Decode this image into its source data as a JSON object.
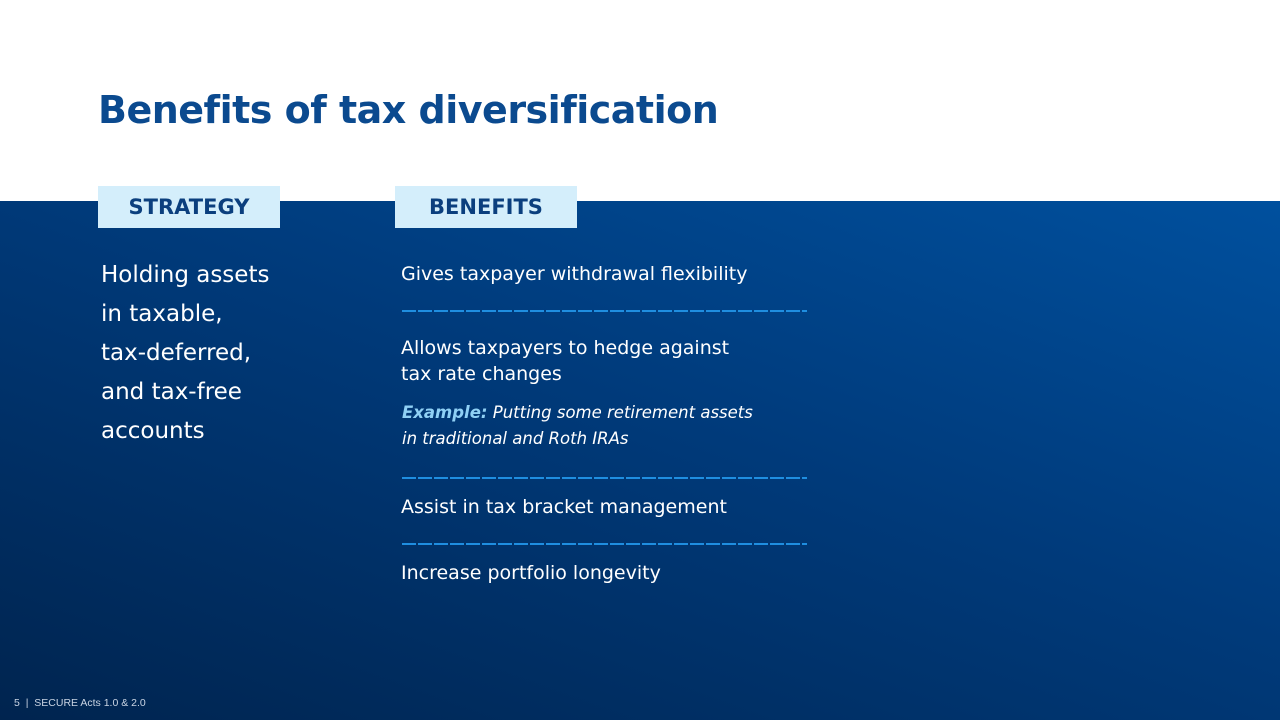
{
  "title": "Benefits of tax diversification",
  "strategy": {
    "header": "STRATEGY",
    "lines": [
      "Holding assets",
      "in taxable,",
      "tax-deferred,",
      "and tax-free",
      "accounts"
    ]
  },
  "benefits": {
    "header": "BENEFITS",
    "items": [
      {
        "lines": [
          "Gives taxpayer withdrawal flexibility"
        ]
      },
      {
        "lines": [
          "Allows taxpayers to hedge against",
          "tax rate changes"
        ],
        "example_label": "Example:",
        "example_lines": [
          " Putting some retirement assets",
          "in traditional and Roth IRAs"
        ]
      },
      {
        "lines": [
          "Assist in tax bracket management"
        ]
      },
      {
        "lines": [
          "Increase portfolio longevity"
        ]
      }
    ]
  },
  "footer": {
    "page": "5",
    "separator": "|",
    "text": "SECURE Acts 1.0 & 2.0"
  },
  "colors": {
    "title": "#0b4a8f",
    "header_bg": "#d4eefb",
    "divider": "#1f8ee0",
    "example_label": "#8fd0f5"
  }
}
